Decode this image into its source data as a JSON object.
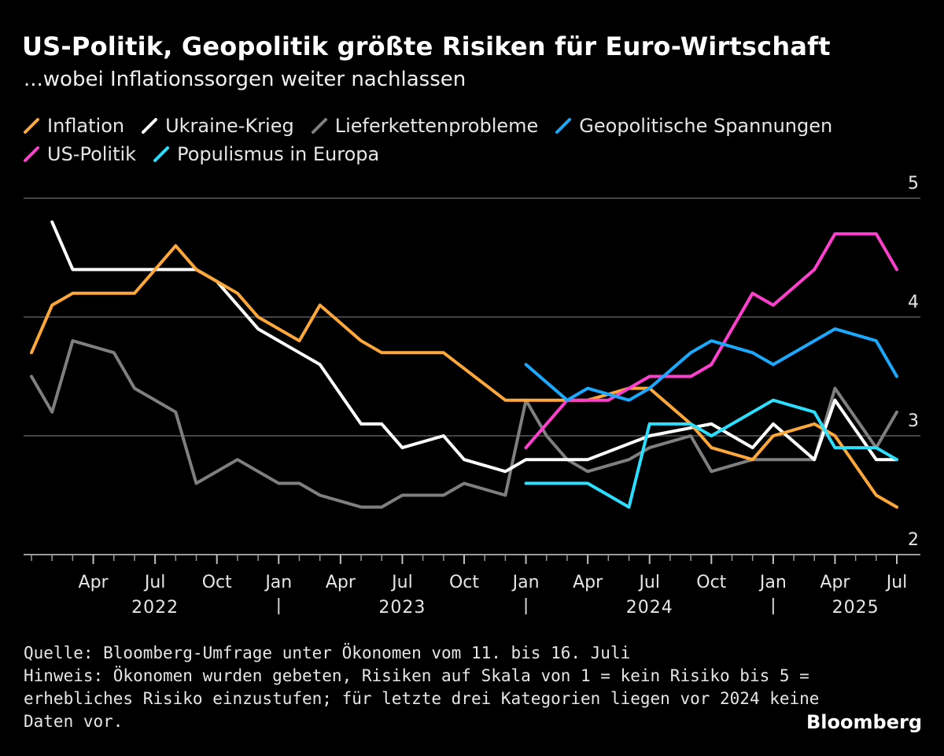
{
  "title": "US-Politik, Geopolitik größte Risiken für Euro-Wirtschaft",
  "subtitle": "...wobei Inflationssorgen weiter nachlassen",
  "source_line": "Quelle: Bloomberg-Umfrage unter Ökonomen vom 11. bis 16. Juli",
  "note_lines": [
    "Hinweis: Ökonomen wurden gebeten, Risiken auf Skala von 1 = kein Risiko bis 5 =",
    "erhebliches Risiko einzustufen; für letzte drei Kategorien liegen vor 2024 keine",
    "Daten vor."
  ],
  "brand": "Bloomberg",
  "chart_data": {
    "type": "line",
    "title": "US-Politik, Geopolitik größte Risiken für Euro-Wirtschaft",
    "subtitle": "...wobei Inflationssorgen weiter nachlassen",
    "xlabel": "",
    "ylabel": "",
    "ylim": [
      2,
      5
    ],
    "yticks": [
      2,
      3,
      4,
      5
    ],
    "grid": true,
    "x_range": [
      "2022-01",
      "2025-07"
    ],
    "x_tick_labels": [
      {
        "date": "2022-04",
        "label": "Apr"
      },
      {
        "date": "2022-07",
        "label": "Jul"
      },
      {
        "date": "2022-10",
        "label": "Oct"
      },
      {
        "date": "2023-01",
        "label": "Jan"
      },
      {
        "date": "2023-04",
        "label": "Apr"
      },
      {
        "date": "2023-07",
        "label": "Jul"
      },
      {
        "date": "2023-10",
        "label": "Oct"
      },
      {
        "date": "2024-01",
        "label": "Jan"
      },
      {
        "date": "2024-04",
        "label": "Apr"
      },
      {
        "date": "2024-07",
        "label": "Jul"
      },
      {
        "date": "2024-10",
        "label": "Oct"
      },
      {
        "date": "2025-01",
        "label": "Jan"
      },
      {
        "date": "2025-04",
        "label": "Apr"
      },
      {
        "date": "2025-07",
        "label": "Jul"
      }
    ],
    "year_labels": [
      {
        "date": "2022-07",
        "label": "2022"
      },
      {
        "date": "2023-07",
        "label": "2023"
      },
      {
        "date": "2024-07",
        "label": "2024"
      },
      {
        "date": "2025-05",
        "label": "2025"
      }
    ],
    "year_separators": [
      "2023-01",
      "2024-01",
      "2025-01"
    ],
    "legend_position": "top",
    "series": [
      {
        "name": "Lieferkettenprobleme",
        "color": "#7f7f7f",
        "x": [
          "2022-01",
          "2022-02",
          "2022-03",
          "2022-05",
          "2022-06",
          "2022-08",
          "2022-09",
          "2022-11",
          "2022-12",
          "2023-01",
          "2023-02",
          "2023-03",
          "2023-05",
          "2023-06",
          "2023-07",
          "2023-08",
          "2023-09",
          "2023-10",
          "2023-11",
          "2023-12",
          "2024-01",
          "2024-02",
          "2024-03",
          "2024-04",
          "2024-06",
          "2024-07",
          "2024-09",
          "2024-10",
          "2024-12",
          "2025-01",
          "2025-02",
          "2025-03",
          "2025-04",
          "2025-06",
          "2025-07"
        ],
        "values": [
          3.5,
          3.2,
          3.8,
          3.7,
          3.4,
          3.2,
          2.6,
          2.8,
          2.7,
          2.6,
          2.6,
          2.5,
          2.4,
          2.4,
          2.5,
          2.5,
          2.5,
          2.6,
          2.55,
          2.5,
          3.3,
          3.0,
          2.8,
          2.7,
          2.8,
          2.9,
          3.0,
          2.7,
          2.8,
          2.8,
          2.8,
          2.8,
          3.4,
          2.9,
          3.2
        ]
      },
      {
        "name": "Ukraine-Krieg",
        "color": "#ffffff",
        "x": [
          "2022-02",
          "2022-03",
          "2022-06",
          "2022-09",
          "2022-10",
          "2022-12",
          "2023-02",
          "2023-03",
          "2023-05",
          "2023-06",
          "2023-07",
          "2023-09",
          "2023-10",
          "2023-12",
          "2024-01",
          "2024-04",
          "2024-07",
          "2024-10",
          "2024-12",
          "2025-01",
          "2025-03",
          "2025-04",
          "2025-06",
          "2025-07"
        ],
        "values": [
          4.8,
          4.4,
          4.4,
          4.4,
          4.3,
          3.9,
          3.7,
          3.6,
          3.1,
          3.1,
          2.9,
          3.0,
          2.8,
          2.7,
          2.8,
          2.8,
          3.0,
          3.1,
          2.9,
          3.1,
          2.8,
          3.3,
          2.8,
          2.8
        ]
      },
      {
        "name": "Inflation",
        "color": "#ffa83a",
        "x": [
          "2022-01",
          "2022-02",
          "2022-03",
          "2022-05",
          "2022-06",
          "2022-08",
          "2022-09",
          "2022-11",
          "2022-12",
          "2023-02",
          "2023-03",
          "2023-05",
          "2023-06",
          "2023-09",
          "2023-12",
          "2024-02",
          "2024-04",
          "2024-06",
          "2024-07",
          "2024-09",
          "2024-10",
          "2024-12",
          "2025-01",
          "2025-03",
          "2025-04",
          "2025-06",
          "2025-07"
        ],
        "values": [
          3.7,
          4.1,
          4.2,
          4.2,
          4.2,
          4.6,
          4.4,
          4.2,
          4.0,
          3.8,
          4.1,
          3.8,
          3.7,
          3.7,
          3.3,
          3.3,
          3.3,
          3.4,
          3.4,
          3.1,
          2.9,
          2.8,
          3.0,
          3.1,
          3.0,
          2.5,
          2.4
        ]
      },
      {
        "name": "US-Politik",
        "color": "#ff3fce",
        "x": [
          "2024-01",
          "2024-03",
          "2024-05",
          "2024-07",
          "2024-08",
          "2024-09",
          "2024-10",
          "2024-12",
          "2025-01",
          "2025-03",
          "2025-04",
          "2025-06",
          "2025-07"
        ],
        "values": [
          2.9,
          3.3,
          3.3,
          3.5,
          3.5,
          3.5,
          3.6,
          4.2,
          4.1,
          4.4,
          4.7,
          4.7,
          4.4
        ]
      },
      {
        "name": "Geopolitische Spannungen",
        "color": "#1ba9ff",
        "x": [
          "2024-01",
          "2024-03",
          "2024-04",
          "2024-06",
          "2024-07",
          "2024-09",
          "2024-10",
          "2024-12",
          "2025-01",
          "2025-04",
          "2025-06",
          "2025-07"
        ],
        "values": [
          3.6,
          3.3,
          3.4,
          3.3,
          3.4,
          3.7,
          3.8,
          3.7,
          3.6,
          3.9,
          3.8,
          3.5
        ]
      },
      {
        "name": "Populismus in Europa",
        "color": "#2adfff",
        "x": [
          "2024-01",
          "2024-04",
          "2024-06",
          "2024-07",
          "2024-09",
          "2024-10",
          "2025-01",
          "2025-03",
          "2025-04",
          "2025-06",
          "2025-07"
        ],
        "values": [
          2.6,
          2.6,
          2.4,
          3.1,
          3.1,
          3.0,
          3.3,
          3.2,
          2.9,
          2.9,
          2.8
        ]
      }
    ],
    "legend": [
      {
        "label": "Inflation",
        "color": "#ffa83a"
      },
      {
        "label": "Ukraine-Krieg",
        "color": "#ffffff"
      },
      {
        "label": "Lieferkettenprobleme",
        "color": "#7f7f7f"
      },
      {
        "label": "Geopolitische Spannungen",
        "color": "#1ba9ff"
      },
      {
        "label": "US-Politik",
        "color": "#ff3fce"
      },
      {
        "label": "Populismus in Europa",
        "color": "#2adfff"
      }
    ]
  }
}
